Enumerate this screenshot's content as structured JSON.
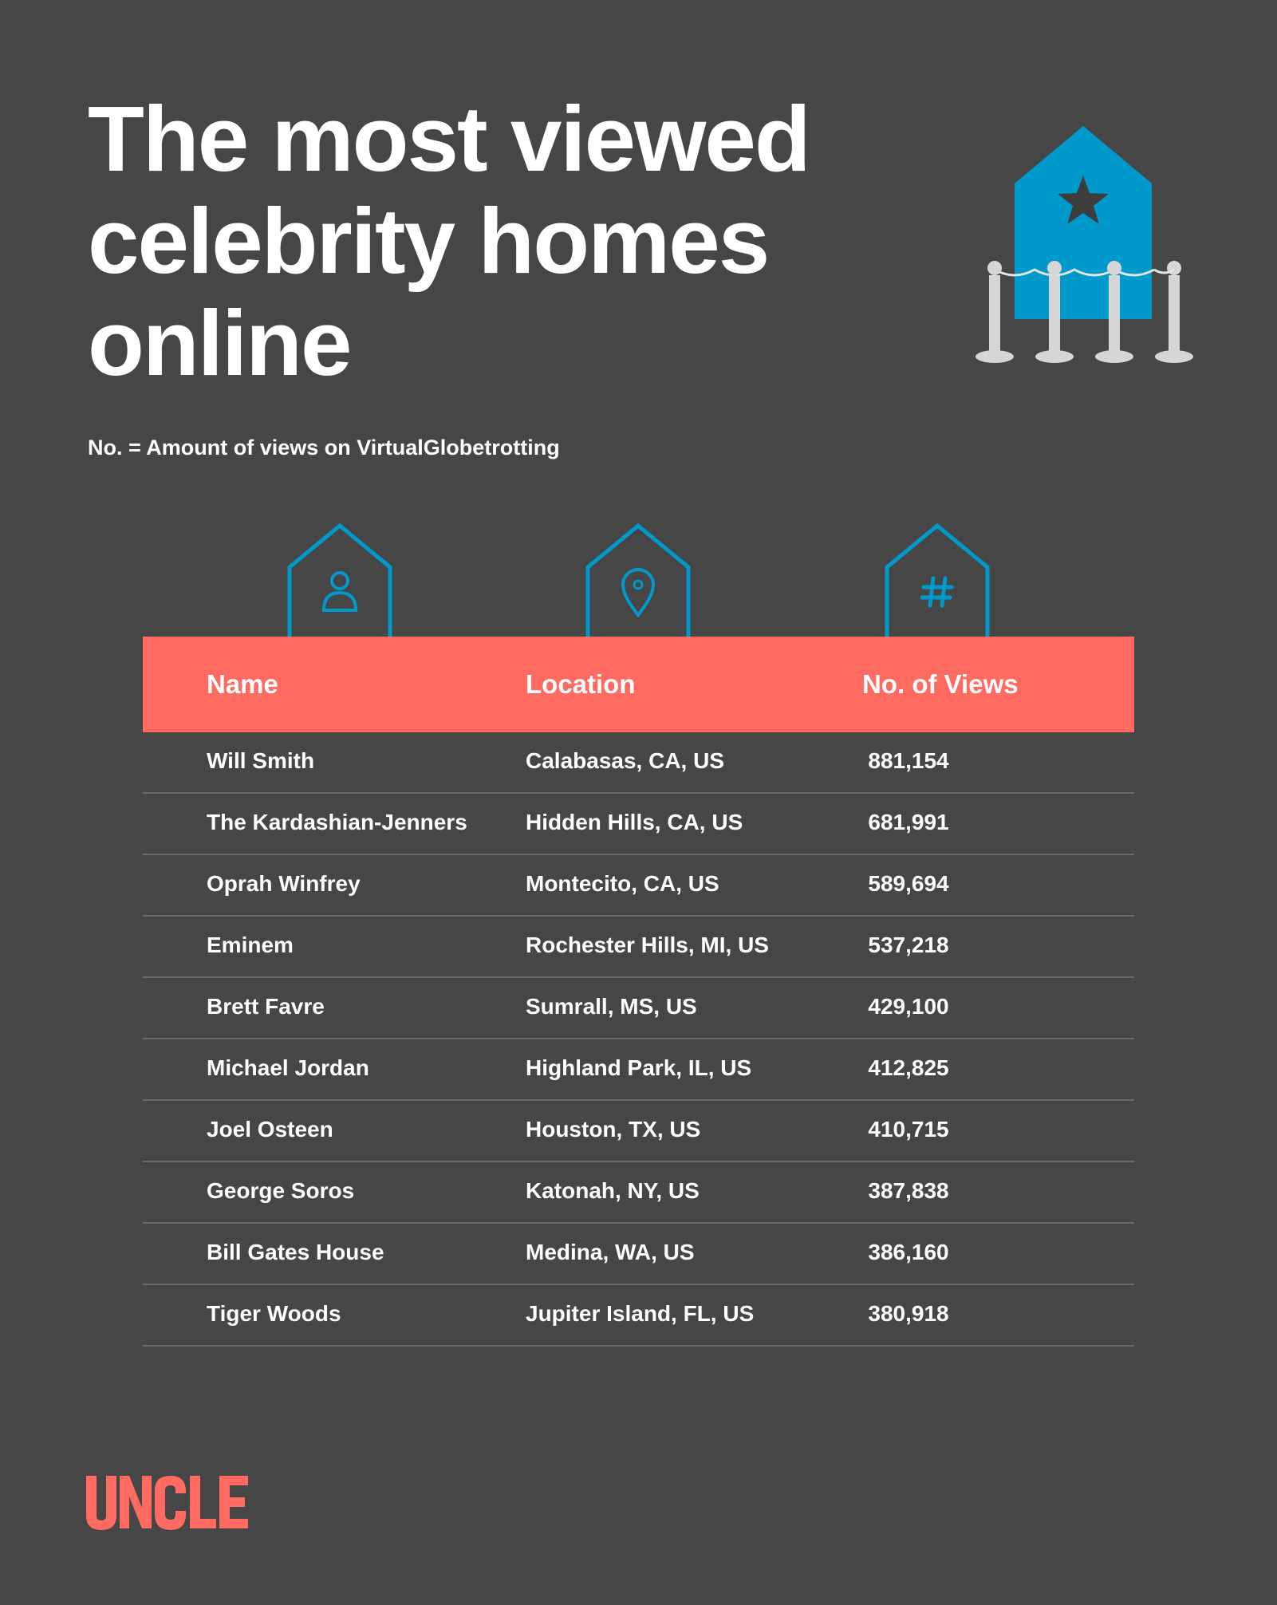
{
  "title_lines": [
    "The most viewed",
    "celebrity homes",
    "online"
  ],
  "subtitle": "No. = Amount of views on VirtualGlobetrotting",
  "colors": {
    "background": "#464646",
    "accent_blue": "#0099cc",
    "header_red": "#ff6b61",
    "post_gray": "#d9d9d9"
  },
  "icons": [
    "house-star-icon",
    "stanchion-icon",
    "person-icon",
    "location-pin-icon",
    "hash-icon"
  ],
  "table": {
    "headers": {
      "name": "Name",
      "location": "Location",
      "views": "No. of Views"
    },
    "rows": [
      {
        "name": "Will Smith",
        "location": "Calabasas, CA, US",
        "views": "881,154"
      },
      {
        "name": "The Kardashian-Jenners",
        "location": "Hidden Hills, CA, US",
        "views": "681,991"
      },
      {
        "name": "Oprah Winfrey",
        "location": "Montecito, CA, US",
        "views": "589,694"
      },
      {
        "name": "Eminem",
        "location": "Rochester Hills, MI, US",
        "views": "537,218"
      },
      {
        "name": "Brett Favre",
        "location": "Sumrall, MS, US",
        "views": "429,100"
      },
      {
        "name": "Michael Jordan",
        "location": "Highland Park, IL, US",
        "views": "412,825"
      },
      {
        "name": "Joel Osteen",
        "location": "Houston, TX, US",
        "views": "410,715"
      },
      {
        "name": "George Soros",
        "location": "Katonah, NY, US",
        "views": "387,838"
      },
      {
        "name": "Bill Gates House",
        "location": "Medina, WA, US",
        "views": "386,160"
      },
      {
        "name": "Tiger Woods",
        "location": "Jupiter Island, FL, US",
        "views": "380,918"
      }
    ]
  },
  "logo": {
    "text": "UNCLE",
    "color": "#ff6b61"
  }
}
